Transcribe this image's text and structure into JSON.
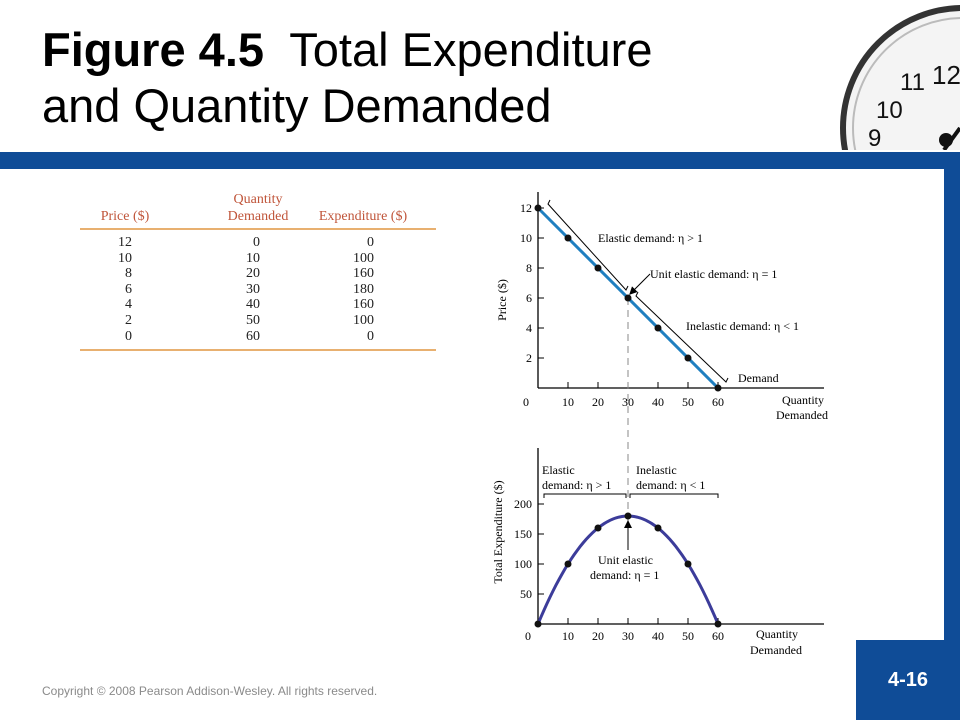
{
  "slide": {
    "title_bold": "Figure 4.5",
    "title_rest": "Total Expenditure",
    "title_line2": "and Quantity Demanded",
    "copyright": "Copyright © 2008 Pearson Addison-Wesley. All rights reserved.",
    "slide_number": "4-16",
    "colors": {
      "brand_blue": "#0f4c97",
      "demand_line": "#1f7fc0",
      "expenditure_curve": "#3c3c9a",
      "table_header": "#c0553a",
      "table_rule": "#e8b070"
    }
  },
  "table": {
    "headers": {
      "price": "Price ($)",
      "qty_line1": "Quantity",
      "qty_line2": "Demanded",
      "expenditure": "Expenditure ($)"
    },
    "rows": [
      {
        "price": "12",
        "qty": "0",
        "exp": "0"
      },
      {
        "price": "10",
        "qty": "10",
        "exp": "100"
      },
      {
        "price": "8",
        "qty": "20",
        "exp": "160"
      },
      {
        "price": "6",
        "qty": "30",
        "exp": "180"
      },
      {
        "price": "4",
        "qty": "40",
        "exp": "160"
      },
      {
        "price": "2",
        "qty": "50",
        "exp": "100"
      },
      {
        "price": "0",
        "qty": "60",
        "exp": "0"
      }
    ]
  },
  "chart_data": [
    {
      "type": "line",
      "x": [
        0,
        10,
        20,
        30,
        40,
        50,
        60
      ],
      "series": [
        {
          "name": "Demand",
          "values": [
            12,
            10,
            8,
            6,
            4,
            2,
            0
          ]
        }
      ],
      "ylabel": "Price ($)",
      "xlabel_line1": "Quantity",
      "xlabel_line2": "Demanded",
      "xlim": [
        0,
        60
      ],
      "ylim": [
        0,
        12
      ],
      "xticks": [
        "0",
        "10",
        "20",
        "30",
        "40",
        "50",
        "60"
      ],
      "yticks": [
        "2",
        "4",
        "6",
        "8",
        "10",
        "12"
      ],
      "annotations": {
        "elastic": "Elastic demand: η > 1",
        "unit": "Unit elastic demand: η = 1",
        "inelastic": "Inelastic demand: η < 1",
        "demand": "Demand"
      }
    },
    {
      "type": "line",
      "x": [
        0,
        10,
        20,
        30,
        40,
        50,
        60
      ],
      "series": [
        {
          "values": [
            0,
            100,
            160,
            180,
            160,
            100,
            0
          ]
        }
      ],
      "ylabel": "Total Expenditure ($)",
      "xlabel_line1": "Quantity",
      "xlabel_line2": "Demanded",
      "xlim": [
        0,
        60
      ],
      "ylim": [
        0,
        200
      ],
      "xticks": [
        "0",
        "10",
        "20",
        "30",
        "40",
        "50",
        "60"
      ],
      "yticks": [
        "50",
        "100",
        "150",
        "200"
      ],
      "annotations": {
        "elastic_line1": "Elastic",
        "elastic_line2": "demand: η > 1",
        "inelastic_line1": "Inelastic",
        "inelastic_line2": "demand: η < 1",
        "unit_line1": "Unit elastic",
        "unit_line2": "demand: η = 1"
      }
    }
  ]
}
